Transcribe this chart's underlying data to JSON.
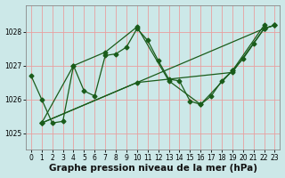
{
  "title": "Graphe pression niveau de la mer (hPa)",
  "bg_color": "#cce8e8",
  "grid_color": "#e8a0a0",
  "line_color": "#1a5c1a",
  "xlim": [
    -0.5,
    23.5
  ],
  "ylim": [
    1024.5,
    1028.8
  ],
  "yticks": [
    1025,
    1026,
    1027,
    1028
  ],
  "xticks": [
    0,
    1,
    2,
    3,
    4,
    5,
    6,
    7,
    8,
    9,
    10,
    11,
    12,
    13,
    14,
    15,
    16,
    17,
    18,
    19,
    20,
    21,
    22,
    23
  ],
  "line1_x": [
    0,
    1,
    2,
    3,
    4,
    5,
    6,
    7,
    8,
    9,
    10,
    11,
    12,
    13,
    14,
    15,
    16,
    17,
    18,
    19,
    20,
    21,
    22,
    23
  ],
  "line1_y": [
    1026.7,
    1026.0,
    1025.3,
    1025.35,
    1027.0,
    1026.25,
    1026.1,
    1027.3,
    1027.35,
    1027.55,
    1028.1,
    1027.75,
    1027.15,
    1026.6,
    1026.55,
    1025.95,
    1025.85,
    1026.1,
    1026.55,
    1026.85,
    1027.2,
    1027.65,
    1028.1,
    1028.2
  ],
  "line2_x": [
    1,
    4,
    7,
    10,
    13,
    16,
    19,
    22
  ],
  "line2_y": [
    1025.3,
    1027.0,
    1027.4,
    1028.15,
    1026.55,
    1025.85,
    1026.85,
    1028.2
  ],
  "line3_x": [
    1,
    22,
    23
  ],
  "line3_y": [
    1025.3,
    1028.1,
    1028.2
  ],
  "line4_x": [
    1,
    10,
    19,
    22,
    23
  ],
  "line4_y": [
    1025.3,
    1026.5,
    1026.8,
    1028.1,
    1028.2
  ],
  "marker": "D",
  "markersize": 2.5,
  "linewidth": 0.9,
  "title_fontsize": 7.5,
  "tick_fontsize": 5.5
}
